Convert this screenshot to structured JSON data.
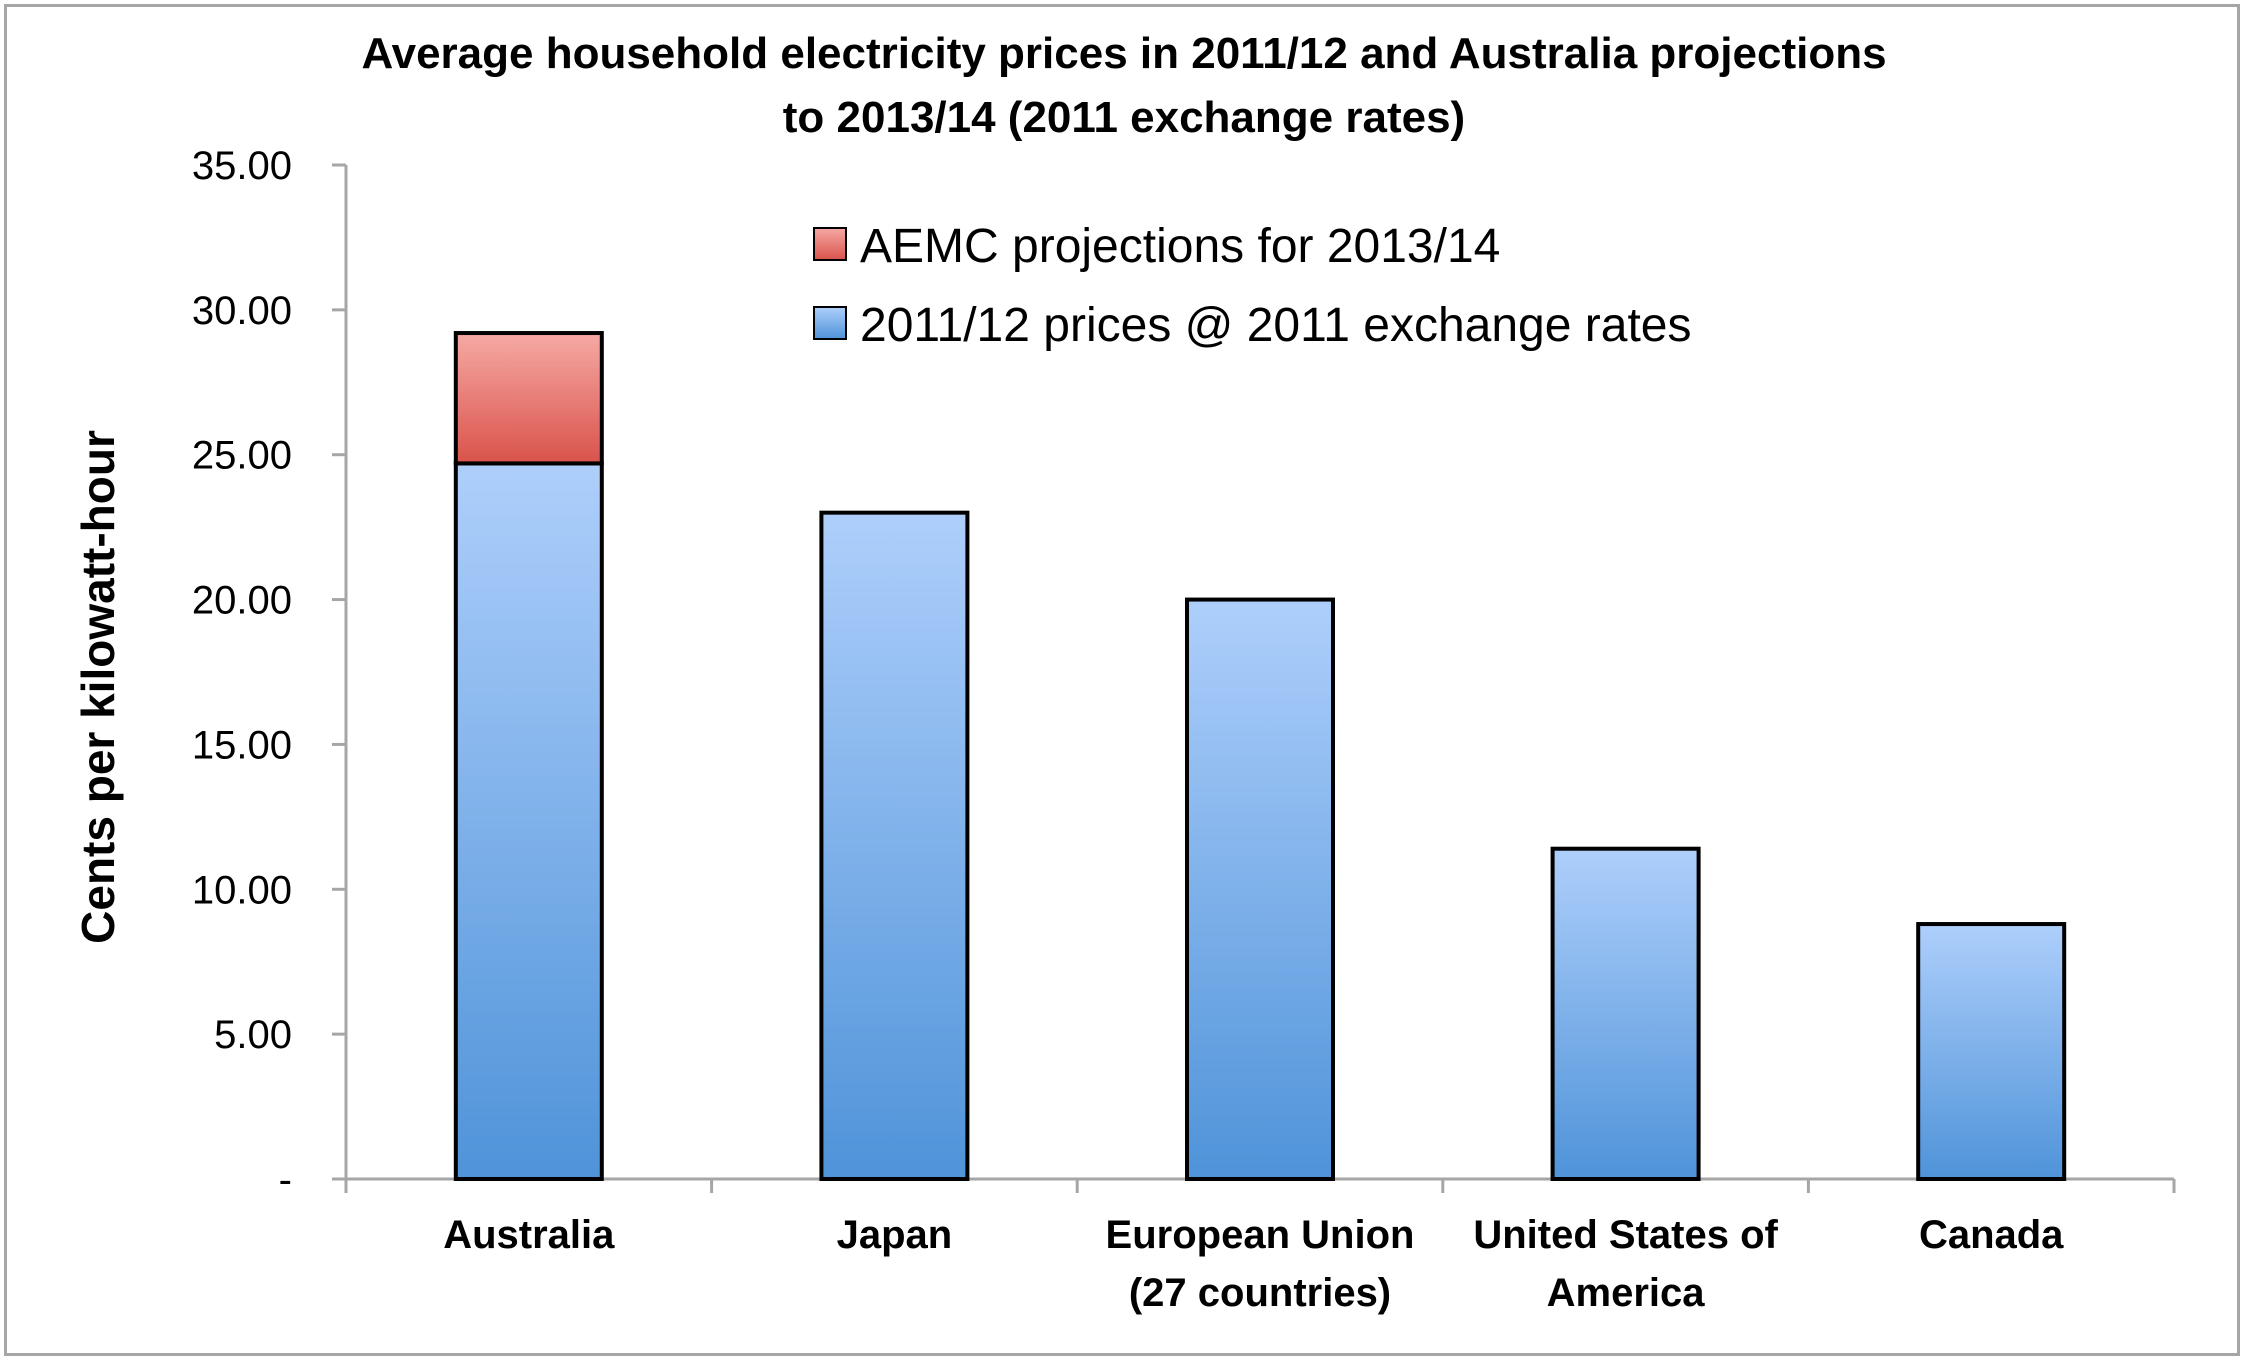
{
  "chart_data": {
    "type": "bar",
    "stacked": true,
    "title": "Average household electricity prices in 2011/12 and Australia projections to 2013/14 (2011 exchange rates)",
    "title_lines": [
      "Average household electricity prices in 2011/12 and Australia projections",
      "to 2013/14 (2011 exchange rates)"
    ],
    "xlabel": "",
    "ylabel": "Cents per kilowatt-hour",
    "ylim": [
      0,
      35
    ],
    "yticks": [
      0,
      5,
      10,
      15,
      20,
      25,
      30,
      35
    ],
    "ytick_labels": [
      "-",
      "5.00",
      "10.00",
      "15.00",
      "20.00",
      "25.00",
      "30.00",
      "35.00"
    ],
    "categories": [
      [
        "Australia"
      ],
      [
        "Japan"
      ],
      [
        "European Union",
        "(27 countries)"
      ],
      [
        "United States of",
        "America"
      ],
      [
        "Canada"
      ]
    ],
    "series": [
      {
        "name": "2011/12 prices @ 2011 exchange rates",
        "values": [
          24.7,
          23.0,
          20.0,
          11.4,
          8.8
        ],
        "color_top": "#aecffb",
        "color_bottom": "#4f93d9"
      },
      {
        "name": "AEMC projections for 2013/14",
        "values": [
          4.5,
          0,
          0,
          0,
          0
        ],
        "color_top": "#f6a9a4",
        "color_bottom": "#d9534b"
      }
    ],
    "legend": {
      "placement": "top-center",
      "entries": [
        "AEMC projections for 2013/14",
        "2011/12 prices @ 2011 exchange rates"
      ]
    },
    "grid": false
  }
}
